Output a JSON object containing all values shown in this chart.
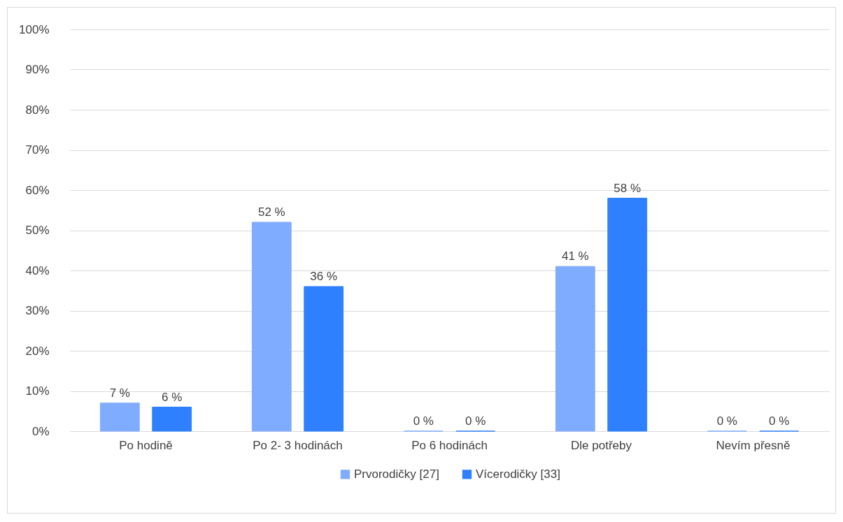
{
  "chart_data": {
    "type": "bar",
    "categories": [
      "Po hodině",
      "Po 2- 3 hodinách",
      "Po 6 hodinách",
      "Dle potřeby",
      "Nevím přesně"
    ],
    "series": [
      {
        "name": "Prvorodičky [27]",
        "color": "#80acff",
        "values": [
          7,
          52,
          0,
          41,
          0
        ],
        "value_labels": [
          "7 %",
          "52 %",
          "0 %",
          "41 %",
          "0 %"
        ]
      },
      {
        "name": "Vícerodičky [33]",
        "color": "#2f80ff",
        "values": [
          6,
          36,
          0,
          58,
          0
        ],
        "value_labels": [
          "6 %",
          "36 %",
          "0 %",
          "58 %",
          "0 %"
        ]
      }
    ],
    "ylim": [
      0,
      100
    ],
    "yticks": [
      {
        "value": 0,
        "label": "0%"
      },
      {
        "value": 10,
        "label": "10%"
      },
      {
        "value": 20,
        "label": "20%"
      },
      {
        "value": 30,
        "label": "30%"
      },
      {
        "value": 40,
        "label": "40%"
      },
      {
        "value": 50,
        "label": "50%"
      },
      {
        "value": 60,
        "label": "60%"
      },
      {
        "value": 70,
        "label": "70%"
      },
      {
        "value": 80,
        "label": "80%"
      },
      {
        "value": 90,
        "label": "90%"
      },
      {
        "value": 100,
        "label": "100%"
      }
    ],
    "grid": "y",
    "legend": "bottom"
  }
}
